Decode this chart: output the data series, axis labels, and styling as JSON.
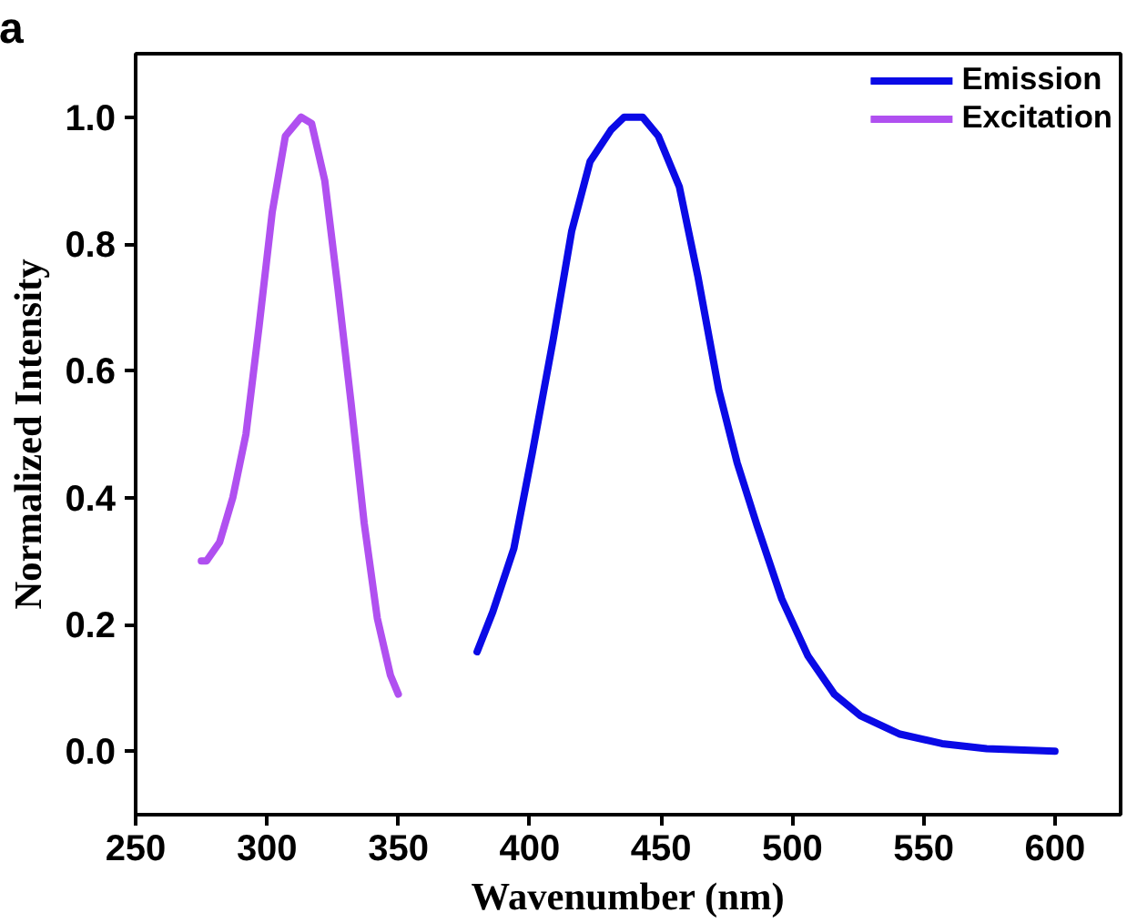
{
  "chart_data": {
    "type": "line",
    "xlabel": "Wavenumber (nm)",
    "ylabel": "Normalized Intensity",
    "annotations": [
      "a"
    ],
    "xlim": [
      250,
      625
    ],
    "ylim": [
      -0.1,
      1.1
    ],
    "xticks": [
      250,
      300,
      350,
      400,
      450,
      500,
      550,
      600
    ],
    "yticks": [
      {
        "value": 0,
        "label": "0.0"
      },
      {
        "value": 0.2,
        "label": "0.2"
      },
      {
        "value": 0.4,
        "label": "0.4"
      },
      {
        "value": 0.6,
        "label": "0.6"
      },
      {
        "value": 0.8,
        "label": "0.8"
      },
      {
        "value": 1,
        "label": "1.0"
      }
    ],
    "grid": false,
    "legend": "top right",
    "marker": "none",
    "line_style": "solid",
    "series": [
      {
        "name": "Emission",
        "color": "#0a0ae6",
        "x": [
          380,
          386,
          394,
          401,
          409,
          416,
          423,
          431,
          436,
          443,
          449,
          457,
          464,
          472,
          479,
          486.5,
          496,
          506,
          516,
          526,
          541,
          557,
          574,
          600
        ],
        "values": [
          0.157,
          0.22,
          0.32,
          0.47,
          0.65,
          0.82,
          0.93,
          0.98,
          1.0,
          1.0,
          0.97,
          0.89,
          0.75,
          0.57,
          0.455,
          0.357,
          0.24,
          0.15,
          0.09,
          0.056,
          0.027,
          0.012,
          0.004,
          0.0
        ]
      },
      {
        "name": "Excitation",
        "color": "#b050f0",
        "x": [
          275,
          277,
          282,
          287,
          292,
          297,
          302,
          307,
          313,
          317,
          322,
          327,
          332,
          337,
          342,
          347,
          350
        ],
        "values": [
          0.3,
          0.3,
          0.33,
          0.4,
          0.5,
          0.67,
          0.85,
          0.97,
          1.0,
          0.99,
          0.9,
          0.73,
          0.55,
          0.36,
          0.21,
          0.12,
          0.09
        ]
      }
    ]
  }
}
